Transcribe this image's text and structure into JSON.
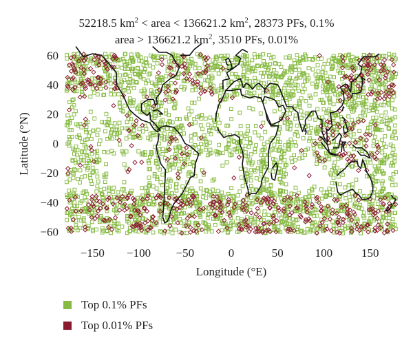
{
  "title": {
    "line1": {
      "pre": "52218.5 km",
      "sup": "2",
      "post": " < area < 136621.2 km",
      "sup2": "2",
      "tail": ", 28373 PFs, 0.1%"
    },
    "line2": {
      "pre": "area > 136621.2 km",
      "sup": "2",
      "tail": ", 3510 PFs, 0.01%"
    }
  },
  "axes": {
    "xlabel": "Longitude (°E)",
    "ylabel": "Latitude (°N)",
    "xticks": [
      "−150",
      "−100",
      "−50",
      "0",
      "50",
      "100",
      "150"
    ],
    "yticks": [
      "60",
      "40",
      "20",
      "0",
      "−20",
      "−40",
      "−60"
    ],
    "xlim": [
      -180,
      180
    ],
    "ylim": [
      -63,
      62
    ]
  },
  "legend": {
    "items": [
      {
        "label": "Top 0.1% PFs",
        "color": "#88bb44"
      },
      {
        "label": "Top 0.01% PFs",
        "color": "#8b1a2f"
      }
    ]
  },
  "colors": {
    "green_marker": "#88bb44",
    "red_marker": "#8b1a2f",
    "coastline": "#111111"
  },
  "chart_data": {
    "type": "scatter",
    "xlabel": "Longitude (°E)",
    "ylabel": "Latitude (°N)",
    "xlim": [
      -180,
      180
    ],
    "ylim": [
      -63,
      62
    ],
    "series": [
      {
        "name": "Top 0.1% PFs",
        "marker": "open-square",
        "color": "#88bb44"
      },
      {
        "name": "Top 0.01% PFs",
        "marker": "open-diamond",
        "color": "#8b1a2f"
      }
    ],
    "counts": {
      "Top 0.1% PFs": 28373,
      "Top 0.01% PFs": 3510
    }
  }
}
